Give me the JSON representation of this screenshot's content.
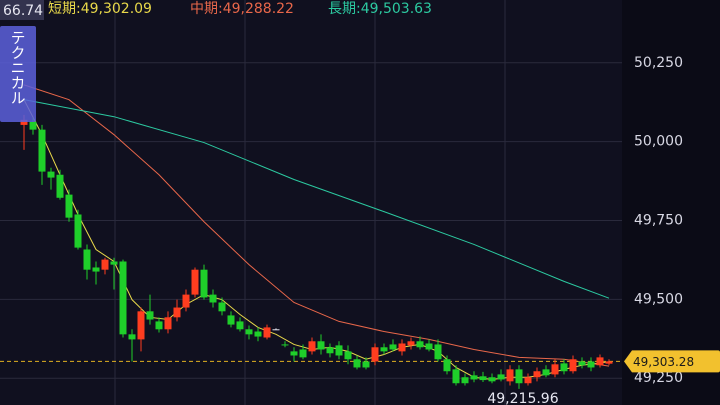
{
  "chart_data": {
    "type": "candlestick",
    "indicator": "66.74",
    "button": "テクニカル",
    "ylim": [
      49165,
      50449
    ],
    "yticks": [
      {
        "value": 50250,
        "label": "50,250"
      },
      {
        "value": 50000,
        "label": "50,000"
      },
      {
        "value": 49750,
        "label": "49,750"
      },
      {
        "value": 49500,
        "label": "49,500"
      },
      {
        "value": 49250,
        "label": "49,250"
      }
    ],
    "grid": true,
    "up_color": "#ff3d1f",
    "down_color": "#1fcf2a",
    "open": [
      50053,
      50063,
      50038,
      49905,
      49895,
      49832,
      49769,
      49658,
      49601,
      49594,
      49620,
      49620,
      49389,
      49373,
      49462,
      49430,
      49405,
      49443,
      49474,
      49515,
      49594,
      49515,
      49490,
      49449,
      49430,
      49405,
      49398,
      49379,
      49405,
      49357,
      49335,
      49341,
      49335,
      49367,
      49348,
      49354,
      49335,
      49310,
      49303,
      49303,
      49348,
      49357,
      49335,
      49354,
      49367,
      49360,
      49357,
      49310,
      49278,
      49253,
      49259,
      49256,
      49253,
      49262,
      49240,
      49278,
      49234,
      49253,
      49278,
      49262,
      49297,
      49272,
      49303,
      49303,
      49291,
      49296
    ],
    "high": [
      50085,
      50076,
      50053,
      49917,
      49911,
      49848,
      49784,
      49674,
      49620,
      49632,
      49632,
      49626,
      49405,
      49474,
      49515,
      49443,
      49462,
      49499,
      49531,
      49601,
      49610,
      49531,
      49506,
      49462,
      49443,
      49417,
      49411,
      49420,
      49408,
      49367,
      49348,
      49357,
      49379,
      49389,
      49360,
      49367,
      49354,
      49322,
      49316,
      49360,
      49360,
      49373,
      49373,
      49379,
      49382,
      49373,
      49373,
      49322,
      49291,
      49265,
      49272,
      49270,
      49265,
      49278,
      49291,
      49291,
      49265,
      49284,
      49291,
      49310,
      49310,
      49322,
      49316,
      49316,
      49325,
      49310
    ],
    "low": [
      49974,
      50022,
      49863,
      49848,
      49816,
      49746,
      49658,
      49563,
      49547,
      49579,
      49531,
      49379,
      49303,
      49335,
      49420,
      49395,
      49392,
      49430,
      49462,
      49506,
      49499,
      49474,
      49449,
      49411,
      49398,
      49373,
      49367,
      49373,
      49403,
      49348,
      49303,
      49310,
      49325,
      49325,
      49316,
      49310,
      49294,
      49278,
      49278,
      49291,
      49325,
      49335,
      49322,
      49341,
      49341,
      49335,
      49303,
      49262,
      49227,
      49227,
      49237,
      49238,
      49234,
      49240,
      49227,
      49215.96,
      49227,
      49240,
      49253,
      49253,
      49262,
      49265,
      49281,
      49272,
      49284,
      49291
    ],
    "close": [
      50069,
      50038,
      49905,
      49886,
      49822,
      49759,
      49664,
      49594,
      49588,
      49626,
      49610,
      49389,
      49373,
      49462,
      49436,
      49405,
      49443,
      49474,
      49515,
      49594,
      49506,
      49490,
      49462,
      49420,
      49405,
      49389,
      49382,
      49411,
      49405,
      49354,
      49322,
      49316,
      49367,
      49341,
      49329,
      49322,
      49310,
      49284,
      49284,
      49348,
      49335,
      49341,
      49360,
      49367,
      49348,
      49341,
      49310,
      49272,
      49234,
      49234,
      49246,
      49244,
      49240,
      49246,
      49278,
      49234,
      49253,
      49272,
      49259,
      49294,
      49272,
      49310,
      49291,
      49284,
      49316,
      49303.28
    ],
    "lines": [
      {
        "name": "短期:49,302.09",
        "color": "#e8d84a",
        "x": [
          0,
          2,
          4,
          6,
          8,
          10,
          12,
          14,
          16,
          18,
          20,
          22,
          24,
          26,
          28,
          30,
          32,
          34,
          36,
          38,
          40,
          42,
          44,
          46,
          48,
          50,
          52,
          54,
          56,
          58,
          60,
          62,
          65
        ],
        "values": [
          50133,
          50022,
          49895,
          49769,
          49658,
          49620,
          49499,
          49443,
          49436,
          49484,
          49515,
          49499,
          49452,
          49411,
          49389,
          49357,
          49341,
          49348,
          49335,
          49310,
          49325,
          49348,
          49357,
          49335,
          49284,
          49253,
          49246,
          49253,
          49253,
          49262,
          49278,
          49291,
          49302.09
        ]
      },
      {
        "name": "中期:49,288.22",
        "color": "#e8674a",
        "x": [
          0,
          5,
          10,
          15,
          20,
          25,
          30,
          35,
          40,
          45,
          50,
          55,
          60,
          65
        ],
        "values": [
          50180,
          50133,
          50022,
          49895,
          49746,
          49610,
          49490,
          49430,
          49398,
          49373,
          49341,
          49316,
          49310,
          49288.22
        ]
      },
      {
        "name": "長期:49,503.63",
        "color": "#2cc9a0",
        "x": [
          0,
          10,
          20,
          30,
          40,
          50,
          60,
          65
        ],
        "values": [
          50133,
          50079,
          49997,
          49880,
          49778,
          49674,
          49557,
          49503.63
        ]
      }
    ],
    "last_price": {
      "value": 49303.28,
      "label": "49,303.28"
    },
    "low_label": "49,215.96"
  }
}
